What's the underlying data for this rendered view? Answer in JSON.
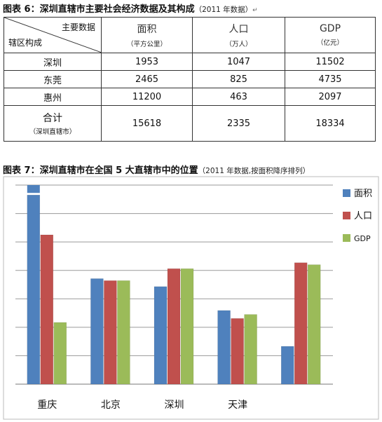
{
  "table_caption": {
    "label": "图表 6：深圳直辖市主要社会经济数据及其构成",
    "note": "（2011 年数据）"
  },
  "table": {
    "corner_top": "主要数据",
    "corner_bottom": "辖区构成",
    "columns": [
      {
        "name": "面积",
        "unit": "（平方公里）"
      },
      {
        "name": "人口",
        "unit": "（万人）"
      },
      {
        "name": "GDP",
        "unit": "（亿元）"
      }
    ],
    "rows": [
      {
        "name": "深圳",
        "values": [
          "1953",
          "1047",
          "11502"
        ]
      },
      {
        "name": "东莞",
        "values": [
          "2465",
          "825",
          "4735"
        ]
      },
      {
        "name": "惠州",
        "values": [
          "11200",
          "463",
          "2097"
        ]
      }
    ],
    "total": {
      "name": "合计",
      "note": "（深圳直辖市）",
      "values": [
        "15618",
        "2335",
        "18334"
      ]
    }
  },
  "chart_caption": {
    "label": "图表 7：深圳直辖市在全国 5 大直辖市中的位置",
    "note": "（2011 年数据,按面积降序排列）"
  },
  "chart_data": {
    "type": "bar",
    "categories": [
      "重庆",
      "北京",
      "深圳",
      "天津",
      ""
    ],
    "series": [
      {
        "name": "面积",
        "color": "#4f81bd",
        "values": [
          95,
          53,
          49,
          37,
          19
        ]
      },
      {
        "name": "人口",
        "color": "#c0504d",
        "values": [
          75,
          52,
          58,
          33,
          61
        ]
      },
      {
        "name": "GDP",
        "color": "#9bbb59",
        "values": [
          31,
          52,
          58,
          35,
          60
        ]
      }
    ],
    "overflow_value": 100,
    "ylim": [
      0,
      100
    ],
    "gridlines": 7,
    "legend_position": "top-right"
  }
}
